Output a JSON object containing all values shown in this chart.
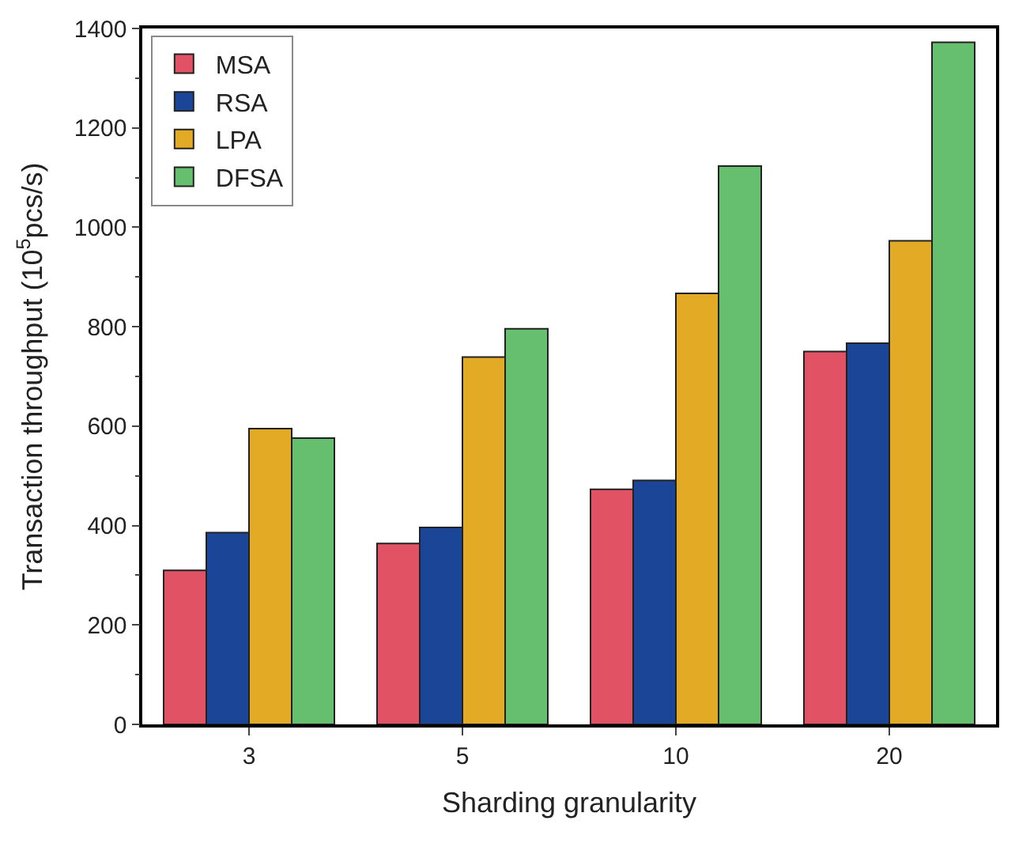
{
  "chart_data": {
    "type": "bar",
    "xlabel": "Sharding granularity",
    "ylabel": "Transaction throughput (10$^{5}$pcs/s)",
    "categories": [
      "3",
      "5",
      "10",
      "20"
    ],
    "series": [
      {
        "name": "MSA",
        "color": "#e05264",
        "values": [
          310,
          364,
          473,
          750
        ]
      },
      {
        "name": "RSA",
        "color": "#1b4597",
        "values": [
          386,
          396,
          491,
          767
        ]
      },
      {
        "name": "LPA",
        "color": "#e3aa26",
        "values": [
          595,
          739,
          867,
          973
        ]
      },
      {
        "name": "DFSA",
        "color": "#66bf6f",
        "values": [
          576,
          796,
          1123,
          1372
        ]
      }
    ],
    "ylim": [
      0,
      1400
    ],
    "yticks": [
      0,
      200,
      400,
      600,
      800,
      1000,
      1200,
      1400
    ],
    "legend": "top left"
  }
}
